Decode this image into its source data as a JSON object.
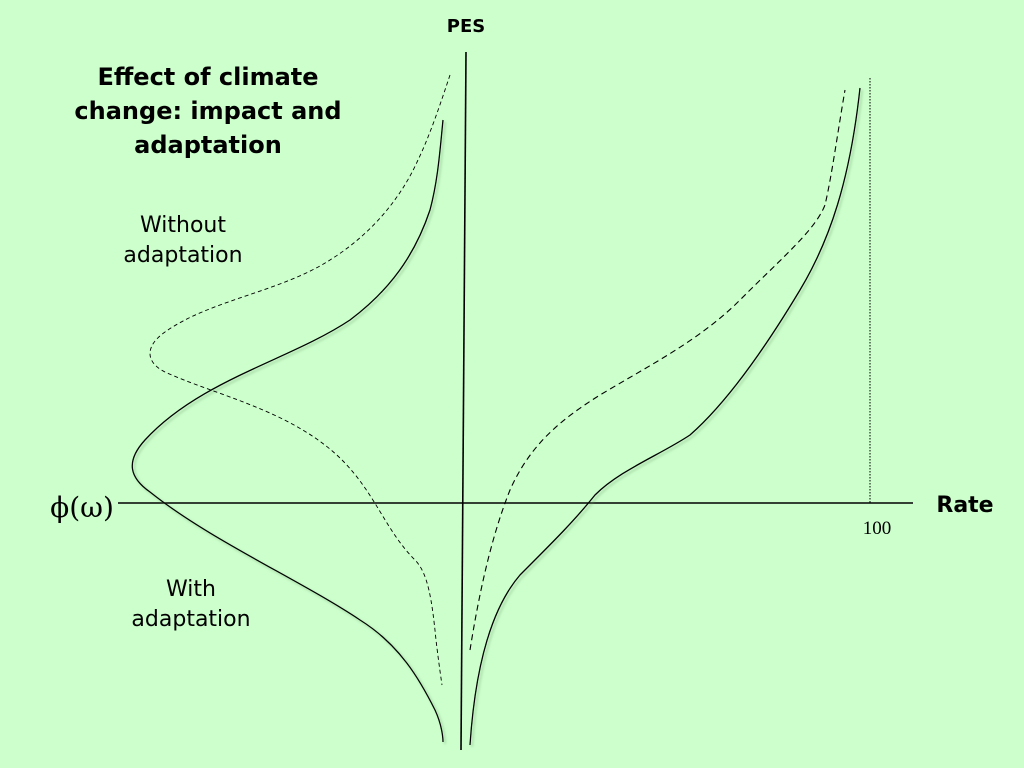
{
  "title": "Effect of climate change: impact and adaptation",
  "labels": {
    "without_adaptation": "Without adaptation",
    "with_adaptation": "With adaptation"
  },
  "axes": {
    "y_label": "PES",
    "x_label": "Rate",
    "left_label": "ϕ(ω)",
    "x_tick": "100"
  }
}
